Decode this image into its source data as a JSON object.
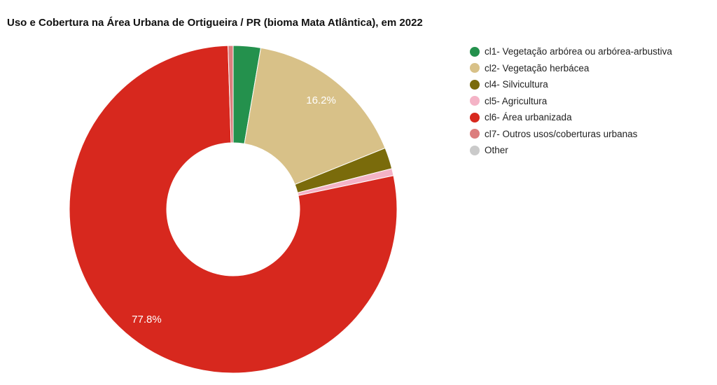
{
  "chart_data": {
    "type": "pie",
    "subtype": "donut",
    "title": "Uso e Cobertura na Área Urbana de Ortigueira / PR (bioma Mata Atlântica), em 2022",
    "hole_ratio": 0.41,
    "direction": "clockwise",
    "start_angle_deg": 0,
    "legend_position": "right",
    "slice_border_color": "#ffffff",
    "label_color": "#ffffff",
    "slices": [
      {
        "label": "cl1- Vegetação arbórea ou arbórea-arbustiva",
        "value": 2.7,
        "color": "#24914d",
        "pct_label": ""
      },
      {
        "label": "cl2- Vegetação herbácea",
        "value": 16.2,
        "color": "#d8c188",
        "pct_label": "16.2%"
      },
      {
        "label": "cl4- Silvicultura",
        "value": 2.1,
        "color": "#7a6b0b",
        "pct_label": ""
      },
      {
        "label": "cl5- Agricultura",
        "value": 0.7,
        "color": "#f4b3c6",
        "pct_label": ""
      },
      {
        "label": "cl6- Área urbanizada",
        "value": 77.8,
        "color": "#d7281e",
        "pct_label": "77.8%"
      },
      {
        "label": "cl7- Outros usos/coberturas urbanas",
        "value": 0.5,
        "color": "#dc7d7d",
        "pct_label": ""
      },
      {
        "label": "Other",
        "value": 0.0,
        "color": "#cacaca",
        "pct_label": ""
      }
    ]
  }
}
